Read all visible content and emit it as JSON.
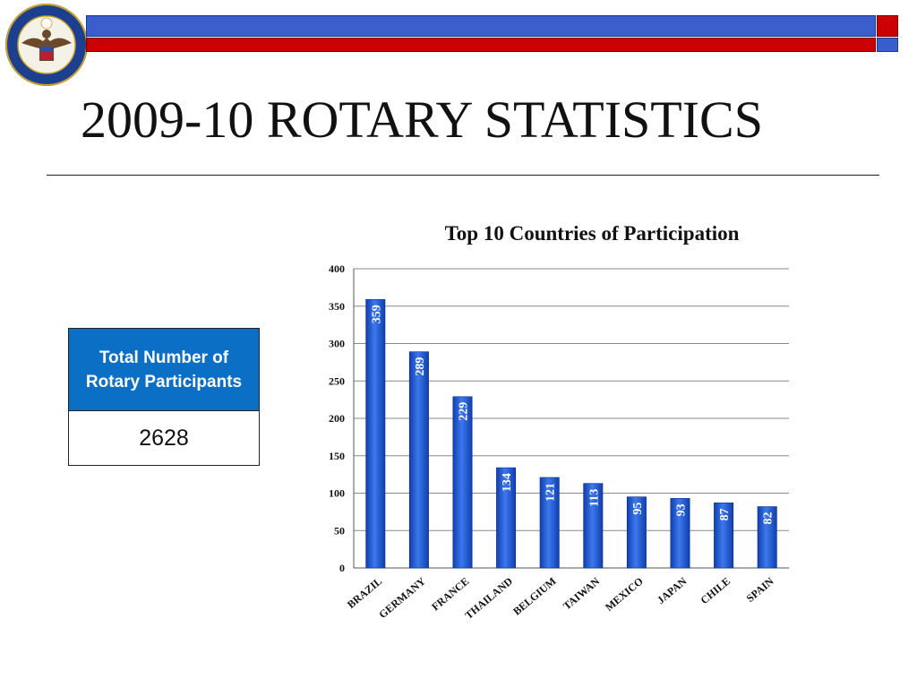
{
  "slide": {
    "title": "2009-10 ROTARY STATISTICS",
    "seal_icon": "us-department-of-state-seal-icon",
    "colors": {
      "band_blue": "#3a5fcd",
      "band_red": "#cc0000",
      "bar_blue": "#1f5bd6",
      "box_header": "#0b6fc6"
    }
  },
  "stat_box": {
    "header": "Total Number of Rotary Participants",
    "value": "2628"
  },
  "chart_data": {
    "type": "bar",
    "title": "Top 10 Countries of Participation",
    "categories": [
      "BRAZIL",
      "GERMANY",
      "FRANCE",
      "THAILAND",
      "BELGIUM",
      "TAIWAN",
      "MEXICO",
      "JAPAN",
      "CHILE",
      "SPAIN"
    ],
    "values": [
      359,
      289,
      229,
      134,
      121,
      113,
      95,
      93,
      87,
      82
    ],
    "ylim": [
      0,
      400
    ],
    "yticks": [
      0,
      50,
      100,
      150,
      200,
      250,
      300,
      350,
      400
    ],
    "grid": true,
    "legend": "none",
    "data_labels": "inside-top-rotated"
  }
}
